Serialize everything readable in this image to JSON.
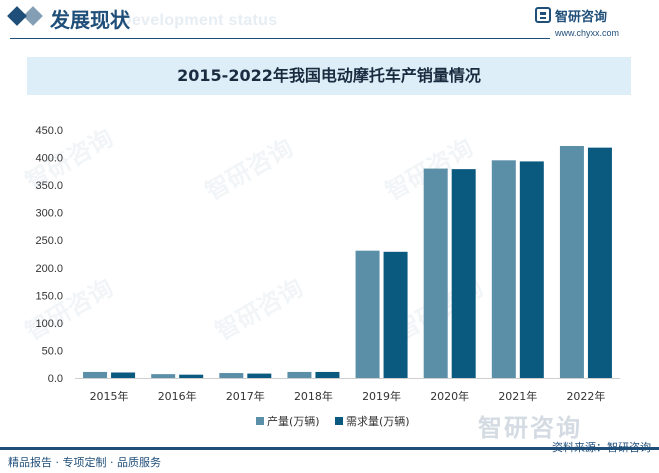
{
  "header": {
    "title": "发展现状",
    "subtitle": "Development status"
  },
  "brand": {
    "name": "智研咨询",
    "url": "www.chyxx.com",
    "logo": "zhiyan-logo-icon"
  },
  "watermark_text": "智研咨询",
  "footer": {
    "left": "精品报告 · 专项定制 · 品质服务",
    "source": "资料来源：智研咨询",
    "wordmark": "智研咨询"
  },
  "colors": {
    "brand": "#1f4e79",
    "production": "#5b8fa8",
    "demand": "#0a5a80",
    "title_band": "#deeef8"
  },
  "chart_data": {
    "type": "bar",
    "title": "2015-2022年我国电动摩托车产销量情况",
    "categories": [
      "2015年",
      "2016年",
      "2017年",
      "2018年",
      "2019年",
      "2020年",
      "2021年",
      "2022年"
    ],
    "series": [
      {
        "name": "产量(万辆)",
        "values": [
          11,
          7,
          9,
          11,
          231,
          380,
          395,
          421
        ]
      },
      {
        "name": "需求量(万辆)",
        "values": [
          10,
          6,
          8,
          11,
          229,
          379,
          393,
          418
        ]
      }
    ],
    "ylim": [
      0,
      450
    ],
    "yticks": [
      "0.0",
      "50.0",
      "100.0",
      "150.0",
      "200.0",
      "250.0",
      "300.0",
      "350.0",
      "400.0",
      "450.0"
    ],
    "xlabel": "",
    "ylabel": "",
    "grid": false,
    "legend": "bottom-center"
  }
}
